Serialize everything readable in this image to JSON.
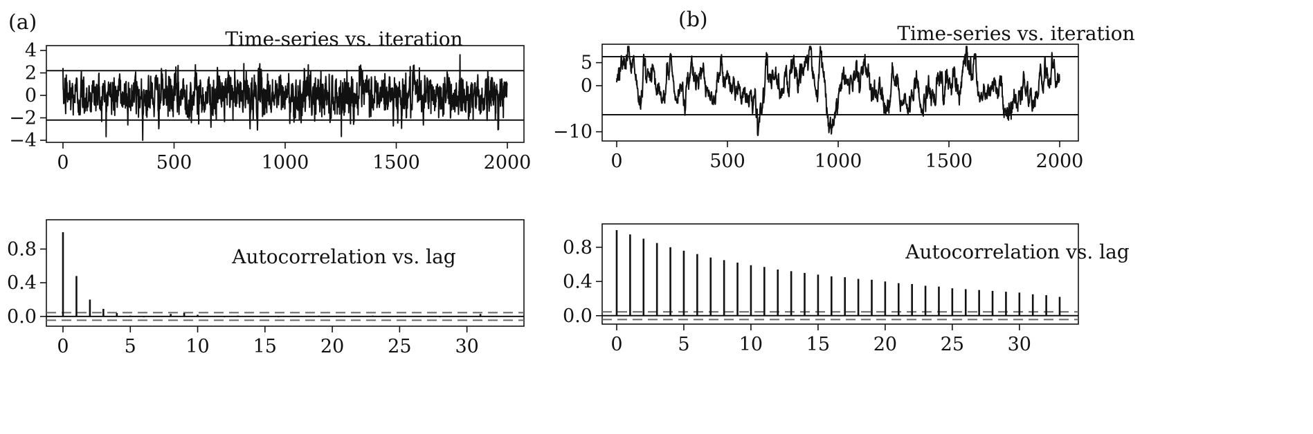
{
  "colors": {
    "ink": "#111111",
    "dashed": "#666666",
    "background": "#ffffff"
  },
  "panels": [
    {
      "label": "(a)"
    },
    {
      "label": "(b)"
    }
  ],
  "chart_data": [
    {
      "panel": "(a)",
      "type": "line",
      "title": "Time-series vs. iteration",
      "xlabel": "",
      "ylabel": "",
      "xlim": [
        0,
        2000
      ],
      "ylim": [
        -4,
        4
      ],
      "xticks": [
        0,
        500,
        1000,
        1500,
        2000
      ],
      "yticks": [
        -4,
        -2,
        0,
        2,
        4
      ],
      "reference_lines": [
        2.2,
        -2.2
      ],
      "series": [
        {
          "n_points": 2000,
          "lag1_autocorrelation": 0.48,
          "std": 1.0,
          "range": [
            -4,
            4
          ]
        }
      ],
      "grid": false
    },
    {
      "panel": "(a)",
      "type": "bar",
      "title": "Autocorrelation vs. lag",
      "xlabel": "",
      "ylabel": "",
      "xlim": [
        0,
        33
      ],
      "ylim": [
        -0.05,
        1.0
      ],
      "xticks": [
        0,
        5,
        10,
        15,
        20,
        25,
        30
      ],
      "yticks": [
        0.0,
        0.4,
        0.8
      ],
      "confidence_bounds": [
        0.045,
        -0.045
      ],
      "categories": [
        0,
        1,
        2,
        3,
        4,
        5,
        6,
        7,
        8,
        9,
        10,
        11,
        12,
        13,
        14,
        15,
        16,
        17,
        18,
        19,
        20,
        21,
        22,
        23,
        24,
        25,
        26,
        27,
        28,
        29,
        30,
        31,
        32,
        33
      ],
      "values": [
        1.0,
        0.48,
        0.2,
        0.09,
        0.04,
        0.01,
        -0.01,
        0.0,
        0.03,
        0.04,
        0.02,
        0.0,
        -0.01,
        0.01,
        0.0,
        0.0,
        -0.01,
        0.0,
        0.0,
        0.01,
        0.0,
        0.0,
        0.0,
        0.01,
        0.0,
        0.0,
        0.0,
        0.0,
        -0.01,
        0.0,
        0.0,
        0.03,
        0.0,
        0.0
      ],
      "grid": false
    },
    {
      "panel": "(b)",
      "type": "line",
      "title": "Time-series vs. iteration",
      "xlabel": "",
      "ylabel": "",
      "xlim": [
        0,
        2000
      ],
      "ylim": [
        -12,
        9
      ],
      "xticks": [
        0,
        500,
        1000,
        1500,
        2000
      ],
      "yticks": [
        -10,
        0,
        5
      ],
      "reference_lines": [
        6.3,
        -6.3
      ],
      "series": [
        {
          "n_points": 2000,
          "lag1_autocorrelation": 0.95,
          "std": 3.2,
          "range": [
            -11.5,
            8.5
          ]
        }
      ],
      "grid": false
    },
    {
      "panel": "(b)",
      "type": "bar",
      "title": "Autocorrelation vs. lag",
      "xlabel": "",
      "ylabel": "",
      "xlim": [
        0,
        33
      ],
      "ylim": [
        -0.05,
        1.0
      ],
      "xticks": [
        0,
        5,
        10,
        15,
        20,
        25,
        30
      ],
      "yticks": [
        0.0,
        0.4,
        0.8
      ],
      "confidence_bounds": [
        0.045,
        -0.045
      ],
      "categories": [
        0,
        1,
        2,
        3,
        4,
        5,
        6,
        7,
        8,
        9,
        10,
        11,
        12,
        13,
        14,
        15,
        16,
        17,
        18,
        19,
        20,
        21,
        22,
        23,
        24,
        25,
        26,
        27,
        28,
        29,
        30,
        31,
        32,
        33
      ],
      "values": [
        1.0,
        0.95,
        0.9,
        0.85,
        0.8,
        0.76,
        0.72,
        0.68,
        0.65,
        0.62,
        0.59,
        0.57,
        0.54,
        0.52,
        0.5,
        0.48,
        0.46,
        0.45,
        0.43,
        0.42,
        0.4,
        0.38,
        0.37,
        0.35,
        0.34,
        0.32,
        0.31,
        0.3,
        0.29,
        0.28,
        0.27,
        0.25,
        0.24,
        0.22
      ],
      "grid": false
    }
  ]
}
